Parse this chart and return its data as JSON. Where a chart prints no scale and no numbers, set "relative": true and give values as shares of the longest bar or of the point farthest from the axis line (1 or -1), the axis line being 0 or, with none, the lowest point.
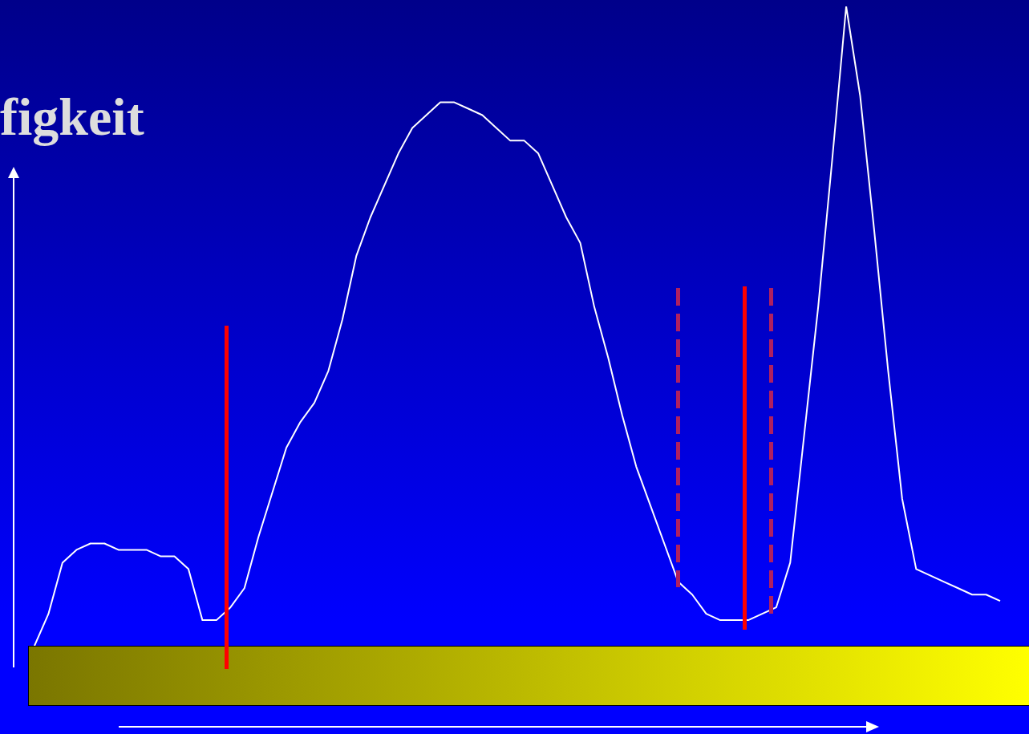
{
  "chart_data": {
    "type": "line",
    "title": "figkeit",
    "relative": true,
    "marker": "none",
    "legend": false,
    "categories": [
      null,
      null,
      null,
      null,
      null,
      null,
      null,
      null,
      null,
      null,
      null,
      null,
      null,
      null,
      null,
      null,
      null,
      null,
      null,
      null,
      null,
      null,
      null,
      null,
      null,
      null,
      null,
      null,
      null,
      null,
      null,
      null,
      null,
      null,
      null,
      null,
      null,
      null,
      null,
      null,
      null,
      null,
      null,
      null,
      null,
      null,
      null,
      null,
      null,
      null,
      null,
      null,
      null,
      null,
      null,
      null,
      null,
      null,
      null,
      null,
      null,
      null,
      null,
      null,
      null,
      null,
      null,
      null,
      null,
      null
    ],
    "series": [
      {
        "color": "#ffffff",
        "values": [
          0,
          0.05,
          0.13,
          0.15,
          0.16,
          0.16,
          0.15,
          0.15,
          0.15,
          0.14,
          0.14,
          0.12,
          0.04,
          0.04,
          0.06,
          0.09,
          0.17,
          0.24,
          0.31,
          0.35,
          0.38,
          0.43,
          0.51,
          0.61,
          0.67,
          0.72,
          0.77,
          0.81,
          0.83,
          0.85,
          0.85,
          0.84,
          0.83,
          0.81,
          0.79,
          0.79,
          0.77,
          0.72,
          0.67,
          0.63,
          0.53,
          0.45,
          0.36,
          0.28,
          0.22,
          0.16,
          0.1,
          0.08,
          0.05,
          0.04,
          0.04,
          0.04,
          0.05,
          0.06,
          0.13,
          0.33,
          0.53,
          0.76,
          1,
          0.86,
          0.65,
          0.43,
          0.23,
          0.12,
          0.11,
          0.1,
          0.09,
          0.08,
          0.08,
          0.07
        ]
      }
    ]
  }
}
